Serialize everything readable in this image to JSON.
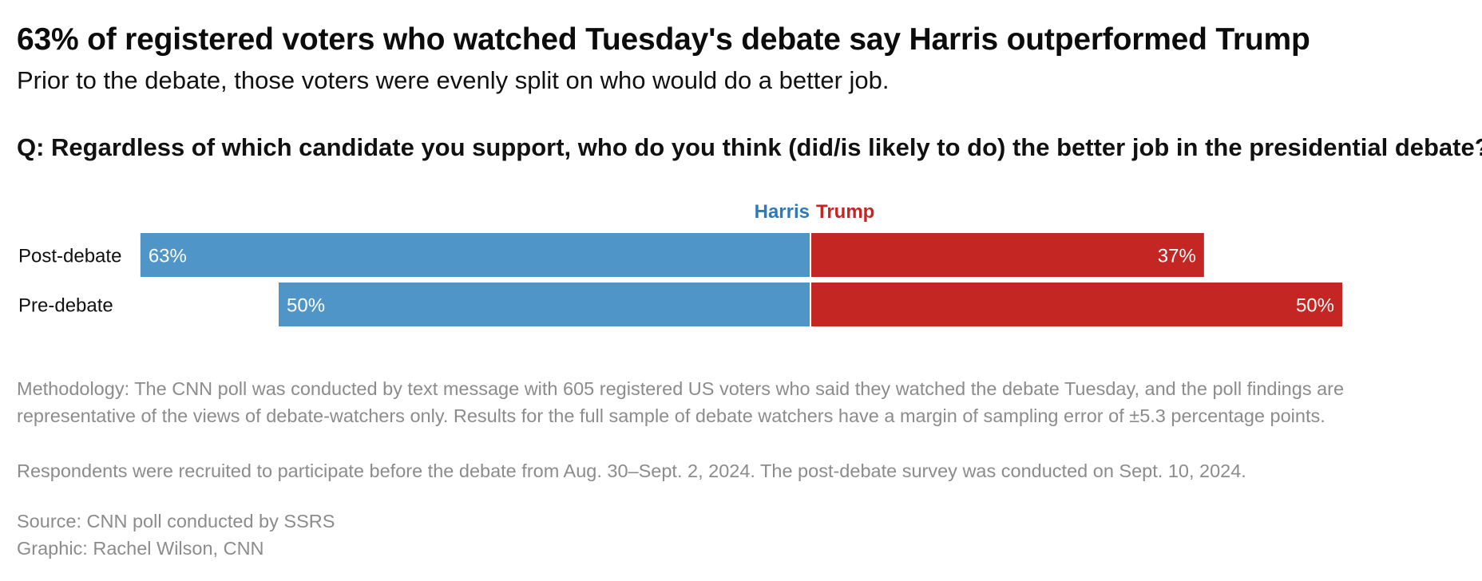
{
  "header": {
    "title": "63% of registered voters who watched Tuesday's debate say Harris outperformed Trump",
    "subtitle": "Prior to the debate, those voters were evenly split on who would do a better job.",
    "question": "Q: Regardless of which candidate you support, who do you think (did/is likely to do) the better job in the presidential debate?"
  },
  "chart_data": {
    "type": "bar",
    "orientation": "horizontal-diverging",
    "categories": [
      "Post-debate",
      "Pre-debate"
    ],
    "series": [
      {
        "name": "Harris",
        "values": [
          63,
          50
        ],
        "labels": [
          "63%",
          "50%"
        ],
        "color": "#5095c7"
      },
      {
        "name": "Trump",
        "values": [
          37,
          50
        ],
        "labels": [
          "37%",
          "50%"
        ],
        "color": "#c42623"
      }
    ],
    "xlim": [
      0,
      100
    ],
    "legend": "top-center",
    "grid": false
  },
  "notes": {
    "methodology": "Methodology: The CNN poll was conducted by text message with 605 registered US voters who said they watched the debate Tuesday, and the poll findings are representative of the views of debate-watchers only. Results for the full sample of debate watchers have a margin of sampling error of ±5.3 percentage points.",
    "recruitment": "Respondents were recruited to participate before the debate from Aug. 30–Sept. 2, 2024. The post-debate survey was conducted on Sept. 10, 2024.",
    "source": "Source: CNN poll conducted by SSRS",
    "graphic": "Graphic: Rachel Wilson, CNN"
  }
}
